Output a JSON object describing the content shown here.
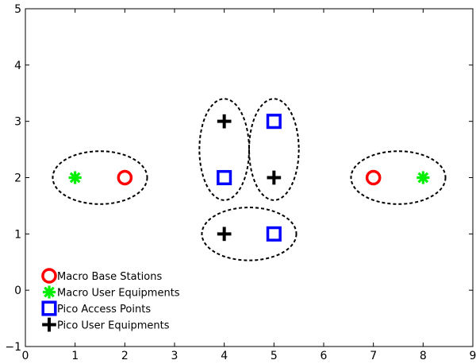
{
  "chart_data": {
    "type": "scatter",
    "xlim": [
      0,
      9
    ],
    "ylim": [
      -1,
      5
    ],
    "x_ticks": [
      0,
      1,
      2,
      3,
      4,
      5,
      6,
      7,
      8,
      9
    ],
    "y_ticks": [
      -1,
      0,
      1,
      2,
      3,
      4,
      5
    ],
    "x_tick_labels": [
      "0",
      "1",
      "2",
      "3",
      "4",
      "5",
      "6",
      "7",
      "8",
      "9"
    ],
    "y_tick_labels": [
      "−1",
      "0",
      "1",
      "2",
      "3",
      "4",
      "5"
    ],
    "grid": false,
    "legend_position": "bottom-left",
    "series": [
      {
        "name": "Macro Base Stations",
        "marker": "circle",
        "color": "#ff0000",
        "points": [
          [
            2,
            2
          ],
          [
            7,
            2
          ]
        ]
      },
      {
        "name": "Macro User Equipments",
        "marker": "asterisk",
        "color": "#00ee00",
        "points": [
          [
            1,
            2
          ],
          [
            8,
            2
          ]
        ]
      },
      {
        "name": "Pico Access Points",
        "marker": "square",
        "color": "#0000ff",
        "points": [
          [
            5,
            3
          ],
          [
            4,
            2
          ],
          [
            5,
            1
          ]
        ]
      },
      {
        "name": "Pico User Equipments",
        "marker": "plus",
        "color": "#000000",
        "points": [
          [
            4,
            3
          ],
          [
            5,
            2
          ],
          [
            4,
            1
          ]
        ]
      }
    ],
    "clusters": [
      {
        "cx": 1.5,
        "cy": 2,
        "rx": 0.95,
        "ry": 0.47
      },
      {
        "cx": 7.5,
        "cy": 2,
        "rx": 0.95,
        "ry": 0.47
      },
      {
        "cx": 4,
        "cy": 2.5,
        "rx": 0.5,
        "ry": 0.9
      },
      {
        "cx": 5,
        "cy": 2.5,
        "rx": 0.5,
        "ry": 0.9
      },
      {
        "cx": 4.5,
        "cy": 1,
        "rx": 0.95,
        "ry": 0.47
      }
    ]
  }
}
